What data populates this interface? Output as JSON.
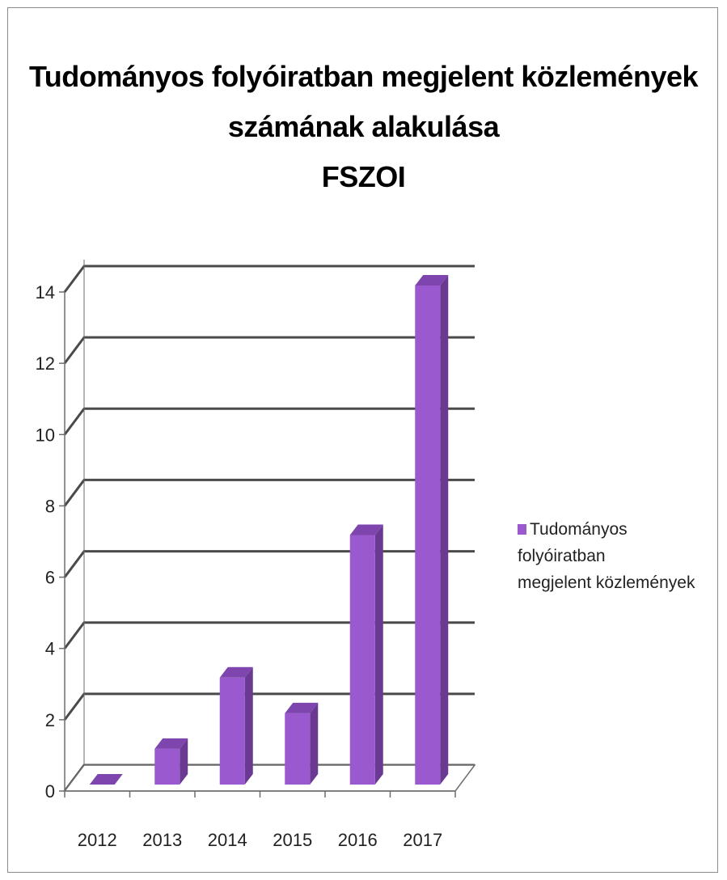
{
  "chart_data": {
    "type": "bar",
    "title": [
      "Tudományos folyóiratban megjelent közlemények",
      "számának alakulása",
      "FSZOI"
    ],
    "categories": [
      "2012",
      "2013",
      "2014",
      "2015",
      "2016",
      "2017"
    ],
    "series": [
      {
        "name": "Tudományos folyóiratban megjelent közlemények",
        "values": [
          0,
          1,
          3,
          2,
          7,
          14
        ],
        "color": "#9b59d0"
      }
    ],
    "yticks": [
      "0",
      "2",
      "4",
      "6",
      "8",
      "10",
      "12",
      "14"
    ],
    "ylim": [
      0,
      14
    ],
    "grid": true,
    "legend_position": "right",
    "style": "3d-column"
  },
  "legend": {
    "line1": "Tudományos folyóiratban",
    "line2": "megjelent közlemények"
  }
}
